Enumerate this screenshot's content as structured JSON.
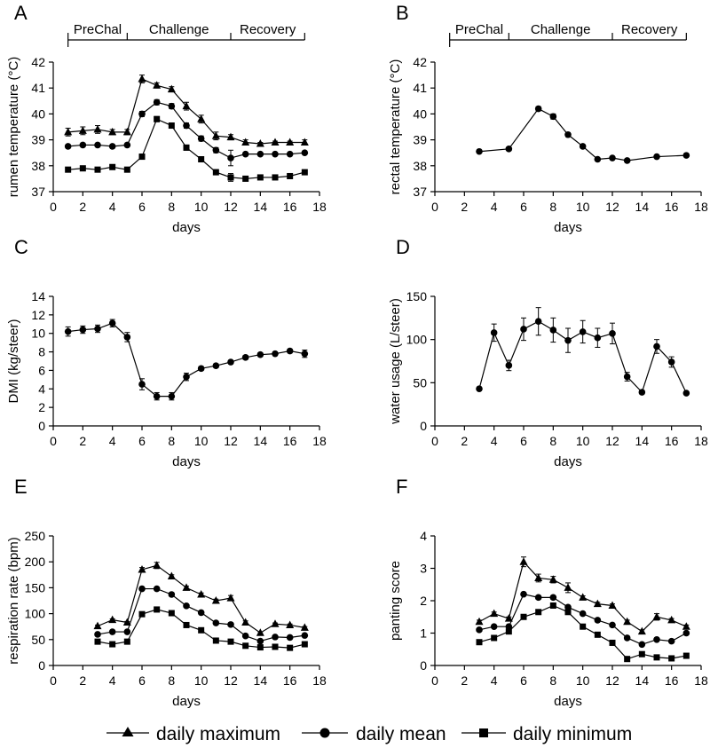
{
  "figure": {
    "legend": [
      {
        "label": "daily maximum",
        "marker": "triangle"
      },
      {
        "label": "daily mean",
        "marker": "circle"
      },
      {
        "label": "daily minimum",
        "marker": "square"
      }
    ]
  },
  "chart_data": [
    {
      "panel": "A",
      "type": "line",
      "xlabel": "days",
      "ylabel": "rumen temperature (°C)",
      "xlim": [
        0,
        18
      ],
      "ylim": [
        37,
        42
      ],
      "xticks": [
        0,
        2,
        4,
        6,
        8,
        10,
        12,
        14,
        16,
        18
      ],
      "yticks": [
        37,
        38,
        39,
        40,
        41,
        42
      ],
      "phases": [
        {
          "label": "PreChal",
          "start": 1,
          "end": 5
        },
        {
          "label": "Challenge",
          "start": 5,
          "end": 12
        },
        {
          "label": "Recovery",
          "start": 12,
          "end": 17
        }
      ],
      "series": [
        {
          "name": "daily maximum",
          "marker": "triangle",
          "x": [
            1,
            2,
            3,
            4,
            5,
            6,
            7,
            8,
            9,
            10,
            11,
            12,
            13,
            14,
            15,
            16,
            17
          ],
          "values": [
            39.3,
            39.35,
            39.4,
            39.3,
            39.3,
            41.35,
            41.1,
            40.95,
            40.3,
            39.8,
            39.15,
            39.1,
            38.9,
            38.85,
            38.9,
            38.9,
            38.9
          ],
          "errors": [
            0.15,
            0.15,
            0.15,
            0.1,
            0.1,
            0.15,
            0.1,
            0.1,
            0.15,
            0.15,
            0.15,
            0.1,
            0.1,
            0.05,
            0.05,
            0.05,
            0.1
          ]
        },
        {
          "name": "daily mean",
          "marker": "circle",
          "x": [
            1,
            2,
            3,
            4,
            5,
            6,
            7,
            8,
            9,
            10,
            11,
            12,
            13,
            14,
            15,
            16,
            17
          ],
          "values": [
            38.75,
            38.8,
            38.8,
            38.75,
            38.8,
            40.0,
            40.45,
            40.3,
            39.55,
            39.05,
            38.6,
            38.3,
            38.45,
            38.45,
            38.45,
            38.45,
            38.5
          ],
          "errors": [
            0.05,
            0.05,
            0.05,
            0.05,
            0.05,
            0.1,
            0.1,
            0.1,
            0.1,
            0.1,
            0.1,
            0.3,
            0.05,
            0.05,
            0.05,
            0.05,
            0.05
          ]
        },
        {
          "name": "daily minimum",
          "marker": "square",
          "x": [
            1,
            2,
            3,
            4,
            5,
            6,
            7,
            8,
            9,
            10,
            11,
            12,
            13,
            14,
            15,
            16,
            17
          ],
          "values": [
            37.85,
            37.9,
            37.85,
            37.95,
            37.85,
            38.35,
            39.8,
            39.55,
            38.7,
            38.25,
            37.75,
            37.55,
            37.5,
            37.55,
            37.55,
            37.6,
            37.75
          ],
          "errors": [
            0.05,
            0.05,
            0.05,
            0.05,
            0.05,
            0.1,
            0.1,
            0.1,
            0.1,
            0.1,
            0.1,
            0.15,
            0.05,
            0.05,
            0.05,
            0.05,
            0.05
          ]
        }
      ]
    },
    {
      "panel": "B",
      "type": "line",
      "xlabel": "days",
      "ylabel": "rectal temperature (°C)",
      "xlim": [
        0,
        18
      ],
      "ylim": [
        37,
        42
      ],
      "xticks": [
        0,
        2,
        4,
        6,
        8,
        10,
        12,
        14,
        16,
        18
      ],
      "yticks": [
        37,
        38,
        39,
        40,
        41,
        42
      ],
      "phases": [
        {
          "label": "PreChal",
          "start": 1,
          "end": 5
        },
        {
          "label": "Challenge",
          "start": 5,
          "end": 12
        },
        {
          "label": "Recovery",
          "start": 12,
          "end": 17
        }
      ],
      "series": [
        {
          "name": "daily mean",
          "marker": "circle",
          "x": [
            3,
            5,
            7,
            8,
            9,
            10,
            11,
            12,
            13,
            15,
            17
          ],
          "values": [
            38.55,
            38.65,
            40.2,
            39.9,
            39.2,
            38.75,
            38.25,
            38.3,
            38.2,
            38.35,
            38.4
          ],
          "errors": [
            0,
            0,
            0.08,
            0.1,
            0.08,
            0.05,
            0.03,
            0.03,
            0.03,
            0.03,
            0.03
          ]
        }
      ]
    },
    {
      "panel": "C",
      "type": "line",
      "xlabel": "days",
      "ylabel": "DMI (kg/steer)",
      "xlim": [
        0,
        18
      ],
      "ylim": [
        0,
        14
      ],
      "xticks": [
        0,
        2,
        4,
        6,
        8,
        10,
        12,
        14,
        16,
        18
      ],
      "yticks": [
        0,
        2,
        4,
        6,
        8,
        10,
        12,
        14
      ],
      "series": [
        {
          "name": "daily mean",
          "marker": "circle",
          "x": [
            1,
            2,
            3,
            4,
            5,
            6,
            7,
            8,
            9,
            10,
            11,
            12,
            13,
            14,
            15,
            16,
            17
          ],
          "values": [
            10.2,
            10.4,
            10.5,
            11.1,
            9.6,
            4.5,
            3.2,
            3.2,
            5.3,
            6.2,
            6.5,
            6.9,
            7.4,
            7.7,
            7.8,
            8.1,
            7.8
          ],
          "errors": [
            0.5,
            0.4,
            0.4,
            0.4,
            0.5,
            0.6,
            0.4,
            0.4,
            0.4,
            0.2,
            0.2,
            0.2,
            0.2,
            0.2,
            0.2,
            0.2,
            0.4
          ]
        }
      ]
    },
    {
      "panel": "D",
      "type": "line",
      "xlabel": "days",
      "ylabel": "water usage (L/steer)",
      "xlim": [
        0,
        18
      ],
      "ylim": [
        0,
        150
      ],
      "xticks": [
        0,
        2,
        4,
        6,
        8,
        10,
        12,
        14,
        16,
        18
      ],
      "yticks": [
        0,
        50,
        100,
        150
      ],
      "series": [
        {
          "name": "daily mean",
          "marker": "circle",
          "x": [
            3,
            4,
            5,
            6,
            7,
            8,
            9,
            10,
            11,
            12,
            13,
            14,
            15,
            16,
            17
          ],
          "values": [
            43,
            108,
            70,
            112,
            121,
            111,
            99,
            109,
            102,
            107,
            57,
            39,
            92,
            74,
            38
          ],
          "errors": [
            2,
            10,
            6,
            13,
            16,
            14,
            14,
            13,
            11,
            12,
            5,
            2,
            8,
            6,
            1
          ]
        }
      ]
    },
    {
      "panel": "E",
      "type": "line",
      "xlabel": "days",
      "ylabel": "respiration rate (bpm)",
      "xlim": [
        0,
        18
      ],
      "ylim": [
        0,
        250
      ],
      "xticks": [
        0,
        2,
        4,
        6,
        8,
        10,
        12,
        14,
        16,
        18
      ],
      "yticks": [
        0,
        50,
        100,
        150,
        200,
        250
      ],
      "series": [
        {
          "name": "daily maximum",
          "marker": "triangle",
          "x": [
            3,
            4,
            5,
            6,
            7,
            8,
            9,
            10,
            11,
            12,
            13,
            14,
            15,
            16,
            17
          ],
          "values": [
            76,
            88,
            83,
            185,
            193,
            172,
            150,
            137,
            125,
            130,
            83,
            63,
            80,
            78,
            73
          ],
          "errors": [
            2,
            2,
            2,
            4,
            6,
            3,
            3,
            3,
            3,
            5,
            3,
            2,
            2,
            2,
            2
          ]
        },
        {
          "name": "daily mean",
          "marker": "circle",
          "x": [
            3,
            4,
            5,
            6,
            7,
            8,
            9,
            10,
            11,
            12,
            13,
            14,
            15,
            16,
            17
          ],
          "values": [
            60,
            65,
            65,
            148,
            148,
            137,
            115,
            102,
            82,
            79,
            57,
            47,
            55,
            54,
            58
          ],
          "errors": [
            2,
            2,
            2,
            3,
            3,
            3,
            3,
            3,
            3,
            3,
            3,
            2,
            2,
            2,
            2
          ]
        },
        {
          "name": "daily minimum",
          "marker": "square",
          "x": [
            3,
            4,
            5,
            6,
            7,
            8,
            9,
            10,
            11,
            12,
            13,
            14,
            15,
            16,
            17
          ],
          "values": [
            46,
            41,
            46,
            99,
            108,
            101,
            78,
            68,
            48,
            46,
            38,
            35,
            36,
            34,
            41
          ],
          "errors": [
            2,
            2,
            2,
            3,
            3,
            3,
            3,
            3,
            3,
            2,
            2,
            2,
            2,
            2,
            2
          ]
        }
      ]
    },
    {
      "panel": "F",
      "type": "line",
      "xlabel": "days",
      "ylabel": "panting score",
      "xlim": [
        0,
        18
      ],
      "ylim": [
        0,
        4
      ],
      "xticks": [
        0,
        2,
        4,
        6,
        8,
        10,
        12,
        14,
        16,
        18
      ],
      "yticks": [
        0,
        1,
        2,
        3,
        4
      ],
      "series": [
        {
          "name": "daily maximum",
          "marker": "triangle",
          "x": [
            3,
            4,
            5,
            6,
            7,
            8,
            9,
            10,
            11,
            12,
            13,
            14,
            15,
            16,
            17
          ],
          "values": [
            1.35,
            1.6,
            1.45,
            3.2,
            2.7,
            2.65,
            2.4,
            2.1,
            1.9,
            1.85,
            1.35,
            1.05,
            1.5,
            1.4,
            1.2
          ],
          "errors": [
            0.05,
            0.05,
            0.05,
            0.15,
            0.12,
            0.1,
            0.15,
            0.05,
            0.05,
            0.05,
            0.05,
            0.05,
            0.1,
            0.05,
            0.05
          ]
        },
        {
          "name": "daily mean",
          "marker": "circle",
          "x": [
            3,
            4,
            5,
            6,
            7,
            8,
            9,
            10,
            11,
            12,
            13,
            14,
            15,
            16,
            17
          ],
          "values": [
            1.1,
            1.2,
            1.2,
            2.2,
            2.1,
            2.1,
            1.8,
            1.6,
            1.4,
            1.25,
            0.85,
            0.65,
            0.8,
            0.75,
            1.0
          ],
          "errors": [
            0.03,
            0.03,
            0.03,
            0.05,
            0.05,
            0.05,
            0.05,
            0.05,
            0.05,
            0.05,
            0.05,
            0.05,
            0.05,
            0.05,
            0.05
          ]
        },
        {
          "name": "daily minimum",
          "marker": "square",
          "x": [
            3,
            4,
            5,
            6,
            7,
            8,
            9,
            10,
            11,
            12,
            13,
            14,
            15,
            16,
            17
          ],
          "values": [
            0.72,
            0.85,
            1.05,
            1.5,
            1.65,
            1.85,
            1.65,
            1.2,
            0.95,
            0.7,
            0.2,
            0.35,
            0.25,
            0.22,
            0.3
          ],
          "errors": [
            0.03,
            0.03,
            0.03,
            0.05,
            0.05,
            0.05,
            0.05,
            0.05,
            0.05,
            0.05,
            0.03,
            0.03,
            0.03,
            0.03,
            0.03
          ]
        }
      ]
    }
  ]
}
